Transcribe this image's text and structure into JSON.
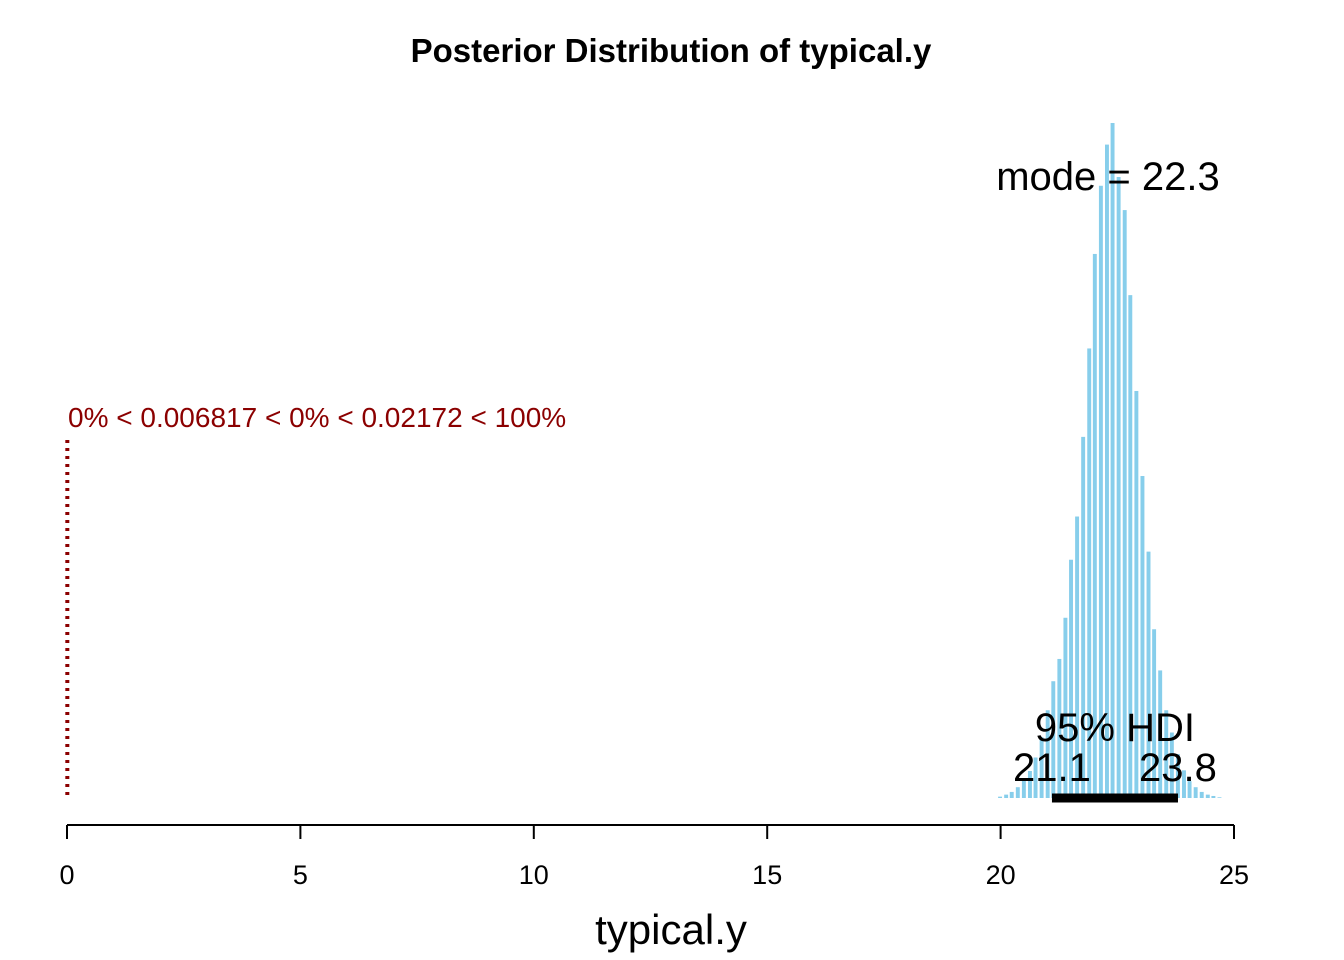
{
  "chart_data": {
    "type": "bar",
    "title": "Posterior Distribution of typical.y",
    "xlabel": "typical.y",
    "ylabel": "",
    "xlim": [
      0,
      25
    ],
    "x_ticks": [
      "0",
      "5",
      "10",
      "15",
      "20",
      "25"
    ],
    "x_tick_values": [
      0,
      5,
      10,
      15,
      20,
      25
    ],
    "bar_color": "#87CEEB",
    "bin_width": 0.127,
    "series": [
      {
        "x": [
          20.01,
          20.14,
          20.26,
          20.39,
          20.52,
          20.65,
          20.77,
          20.9,
          21.03,
          21.15,
          21.28,
          21.41,
          21.53,
          21.66,
          21.79,
          21.92,
          22.04,
          22.17,
          22.3,
          22.42,
          22.55,
          22.68,
          22.8,
          22.93,
          23.06,
          23.19,
          23.31,
          23.44,
          23.57,
          23.69,
          23.82,
          23.95,
          24.07,
          24.2,
          24.33,
          24.46,
          24.58,
          24.71
        ],
        "values": [
          0.2,
          0.5,
          0.9,
          1.6,
          2.6,
          4.0,
          6.0,
          9.0,
          13.0,
          17.3,
          20.6,
          26.7,
          35.3,
          41.7,
          53.5,
          66.6,
          80.6,
          90.7,
          96.8,
          100.0,
          92.0,
          87.1,
          74.5,
          60.3,
          47.7,
          36.5,
          25.0,
          18.9,
          13.0,
          9.7,
          6.5,
          4.1,
          2.5,
          1.6,
          0.9,
          0.5,
          0.3,
          0.1
        ]
      }
    ],
    "annotations": {
      "mode_label": "mode = 22.3",
      "mode_value": 22.3,
      "hdi_label": "95% HDI",
      "hdi_low": 21.1,
      "hdi_high": 23.8,
      "hdi_low_label": "21.1",
      "hdi_high_label": "23.8",
      "comparison_text": "0% < 0.006817 < 0% < 0.02172 < 100%",
      "comparison_value": 0.006817,
      "comparison_color": "#8B0000"
    },
    "grid": false
  }
}
